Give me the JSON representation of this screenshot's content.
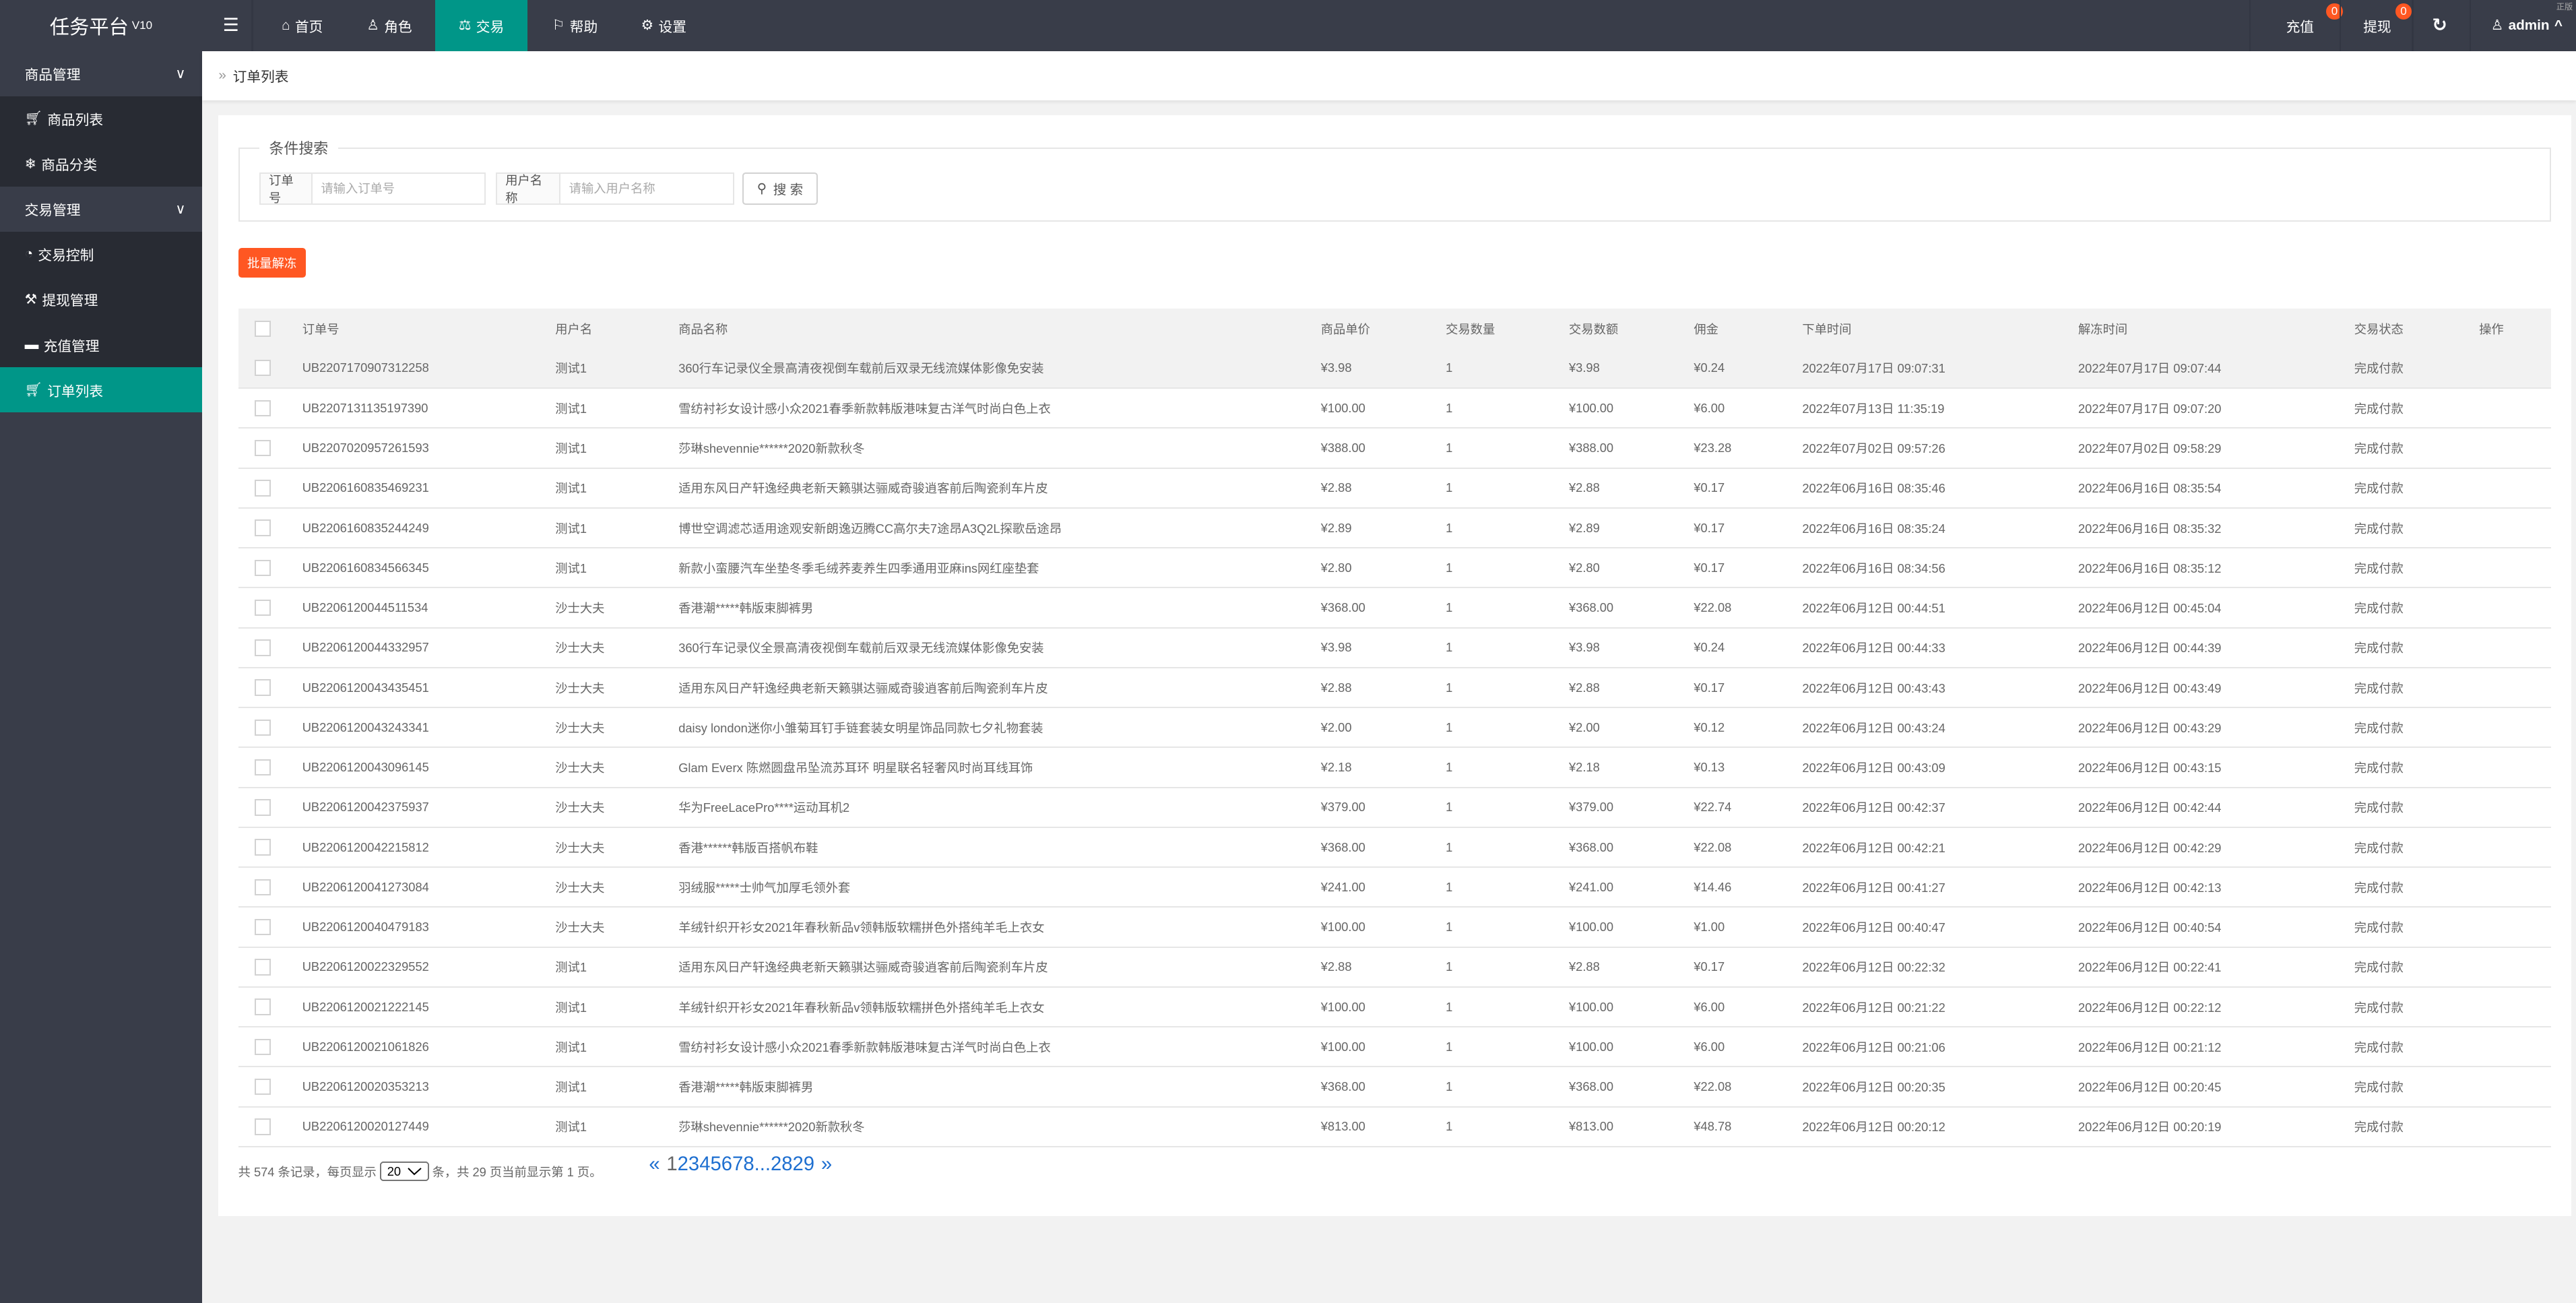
{
  "app": {
    "title": "任务平台",
    "version": "V10",
    "corner_text": "正版"
  },
  "topnav": {
    "items": [
      {
        "label": "首页",
        "icon": "home-icon"
      },
      {
        "label": "角色",
        "icon": "user-icon"
      },
      {
        "label": "交易",
        "icon": "scale-icon",
        "active": true
      },
      {
        "label": "帮助",
        "icon": "flag-icon"
      },
      {
        "label": "设置",
        "icon": "gear-icon"
      }
    ],
    "recharge": {
      "label": "充值",
      "badge": "0"
    },
    "withdraw": {
      "label": "提现",
      "badge": "0"
    },
    "user": "admin"
  },
  "sidebar": {
    "groups": [
      {
        "label": "商品管理",
        "items": [
          {
            "label": "商品列表",
            "icon": "cart-icon"
          },
          {
            "label": "商品分类",
            "icon": "snowflake-icon"
          }
        ]
      },
      {
        "label": "交易管理",
        "items": [
          {
            "label": "交易控制",
            "icon": "dashboard-icon"
          },
          {
            "label": "提现管理",
            "icon": "gavel-icon"
          },
          {
            "label": "充值管理",
            "icon": "comment-icon"
          },
          {
            "label": "订单列表",
            "icon": "cart-outline-icon",
            "active": true
          }
        ]
      }
    ]
  },
  "breadcrumb": "订单列表",
  "search": {
    "legend": "条件搜索",
    "order_label": "订单号",
    "order_placeholder": "请输入订单号",
    "user_label": "用户名称",
    "user_placeholder": "请输入用户名称",
    "button": "搜 索"
  },
  "batch_button": "批量解冻",
  "table": {
    "columns": [
      "订单号",
      "用户名",
      "商品名称",
      "商品单价",
      "交易数量",
      "交易数额",
      "佣金",
      "下单时间",
      "解冻时间",
      "交易状态",
      "操作"
    ],
    "rows": [
      [
        "UB2207170907312258",
        "测试1",
        "360行车记录仪全景高清夜视倒车载前后双录无线流媒体影像免安装",
        "¥3.98",
        "1",
        "¥3.98",
        "¥0.24",
        "2022年07月17日 09:07:31",
        "2022年07月17日 09:07:44",
        "完成付款"
      ],
      [
        "UB2207131135197390",
        "测试1",
        "雪纺衬衫女设计感小众2021春季新款韩版港味复古洋气时尚白色上衣",
        "¥100.00",
        "1",
        "¥100.00",
        "¥6.00",
        "2022年07月13日 11:35:19",
        "2022年07月17日 09:07:20",
        "完成付款"
      ],
      [
        "UB2207020957261593",
        "测试1",
        "莎琳shevennie******2020新款秋冬",
        "¥388.00",
        "1",
        "¥388.00",
        "¥23.28",
        "2022年07月02日 09:57:26",
        "2022年07月02日 09:58:29",
        "完成付款"
      ],
      [
        "UB2206160835469231",
        "测试1",
        "适用东风日产轩逸经典老新天籁骐达骊威奇骏逍客前后陶瓷刹车片皮",
        "¥2.88",
        "1",
        "¥2.88",
        "¥0.17",
        "2022年06月16日 08:35:46",
        "2022年06月16日 08:35:54",
        "完成付款"
      ],
      [
        "UB2206160835244249",
        "测试1",
        "博世空调滤芯适用途观安新朗逸迈腾CC高尔夫7途昂A3Q2L探歌岳途昂",
        "¥2.89",
        "1",
        "¥2.89",
        "¥0.17",
        "2022年06月16日 08:35:24",
        "2022年06月16日 08:35:32",
        "完成付款"
      ],
      [
        "UB2206160834566345",
        "测试1",
        "新款小蛮腰汽车坐垫冬季毛绒荞麦养生四季通用亚麻ins网红座垫套",
        "¥2.80",
        "1",
        "¥2.80",
        "¥0.17",
        "2022年06月16日 08:34:56",
        "2022年06月16日 08:35:12",
        "完成付款"
      ],
      [
        "UB2206120044511534",
        "沙士大夫",
        "香港潮*****韩版束脚裤男",
        "¥368.00",
        "1",
        "¥368.00",
        "¥22.08",
        "2022年06月12日 00:44:51",
        "2022年06月12日 00:45:04",
        "完成付款"
      ],
      [
        "UB2206120044332957",
        "沙士大夫",
        "360行车记录仪全景高清夜视倒车载前后双录无线流媒体影像免安装",
        "¥3.98",
        "1",
        "¥3.98",
        "¥0.24",
        "2022年06月12日 00:44:33",
        "2022年06月12日 00:44:39",
        "完成付款"
      ],
      [
        "UB2206120043435451",
        "沙士大夫",
        "适用东风日产轩逸经典老新天籁骐达骊威奇骏逍客前后陶瓷刹车片皮",
        "¥2.88",
        "1",
        "¥2.88",
        "¥0.17",
        "2022年06月12日 00:43:43",
        "2022年06月12日 00:43:49",
        "完成付款"
      ],
      [
        "UB2206120043243341",
        "沙士大夫",
        "daisy london迷你小雏菊耳钉手链套装女明星饰品同款七夕礼物套装",
        "¥2.00",
        "1",
        "¥2.00",
        "¥0.12",
        "2022年06月12日 00:43:24",
        "2022年06月12日 00:43:29",
        "完成付款"
      ],
      [
        "UB2206120043096145",
        "沙士大夫",
        "Glam Everx 陈燃圆盘吊坠流苏耳环 明星联名轻奢风时尚耳线耳饰",
        "¥2.18",
        "1",
        "¥2.18",
        "¥0.13",
        "2022年06月12日 00:43:09",
        "2022年06月12日 00:43:15",
        "完成付款"
      ],
      [
        "UB2206120042375937",
        "沙士大夫",
        "华为FreeLacePro****运动耳机2",
        "¥379.00",
        "1",
        "¥379.00",
        "¥22.74",
        "2022年06月12日 00:42:37",
        "2022年06月12日 00:42:44",
        "完成付款"
      ],
      [
        "UB2206120042215812",
        "沙士大夫",
        "香港******韩版百搭帆布鞋",
        "¥368.00",
        "1",
        "¥368.00",
        "¥22.08",
        "2022年06月12日 00:42:21",
        "2022年06月12日 00:42:29",
        "完成付款"
      ],
      [
        "UB2206120041273084",
        "沙士大夫",
        "羽绒服*****士帅气加厚毛领外套",
        "¥241.00",
        "1",
        "¥241.00",
        "¥14.46",
        "2022年06月12日 00:41:27",
        "2022年06月12日 00:42:13",
        "完成付款"
      ],
      [
        "UB2206120040479183",
        "沙士大夫",
        "羊绒针织开衫女2021年春秋新品v领韩版软糯拼色外搭纯羊毛上衣女",
        "¥100.00",
        "1",
        "¥100.00",
        "¥1.00",
        "2022年06月12日 00:40:47",
        "2022年06月12日 00:40:54",
        "完成付款"
      ],
      [
        "UB2206120022329552",
        "测试1",
        "适用东风日产轩逸经典老新天籁骐达骊威奇骏逍客前后陶瓷刹车片皮",
        "¥2.88",
        "1",
        "¥2.88",
        "¥0.17",
        "2022年06月12日 00:22:32",
        "2022年06月12日 00:22:41",
        "完成付款"
      ],
      [
        "UB2206120021222145",
        "测试1",
        "羊绒针织开衫女2021年春秋新品v领韩版软糯拼色外搭纯羊毛上衣女",
        "¥100.00",
        "1",
        "¥100.00",
        "¥6.00",
        "2022年06月12日 00:21:22",
        "2022年06月12日 00:22:12",
        "完成付款"
      ],
      [
        "UB2206120021061826",
        "测试1",
        "雪纺衬衫女设计感小众2021春季新款韩版港味复古洋气时尚白色上衣",
        "¥100.00",
        "1",
        "¥100.00",
        "¥6.00",
        "2022年06月12日 00:21:06",
        "2022年06月12日 00:21:12",
        "完成付款"
      ],
      [
        "UB2206120020353213",
        "测试1",
        "香港潮*****韩版束脚裤男",
        "¥368.00",
        "1",
        "¥368.00",
        "¥22.08",
        "2022年06月12日 00:20:35",
        "2022年06月12日 00:20:45",
        "完成付款"
      ],
      [
        "UB2206120020127449",
        "测试1",
        "莎琳shevennie******2020新款秋冬",
        "¥813.00",
        "1",
        "¥813.00",
        "¥48.78",
        "2022年06月12日 00:20:12",
        "2022年06月12日 00:20:19",
        "完成付款"
      ]
    ]
  },
  "pagination": {
    "summary_prefix": "共 574 条记录，每页显示",
    "page_size": "20",
    "summary_suffix": "条，共 29 页当前显示第 1 页。",
    "prev": "«",
    "current": "1",
    "pages": [
      "2",
      "3",
      "4",
      "5",
      "6",
      "7",
      "8"
    ],
    "ellipsis": "...",
    "last_pages": [
      "28",
      "29"
    ],
    "next": "»"
  },
  "colors": {
    "topbar": "#393d49",
    "accent": "#009688",
    "danger": "#ff5722",
    "link": "#1e6fd0"
  }
}
